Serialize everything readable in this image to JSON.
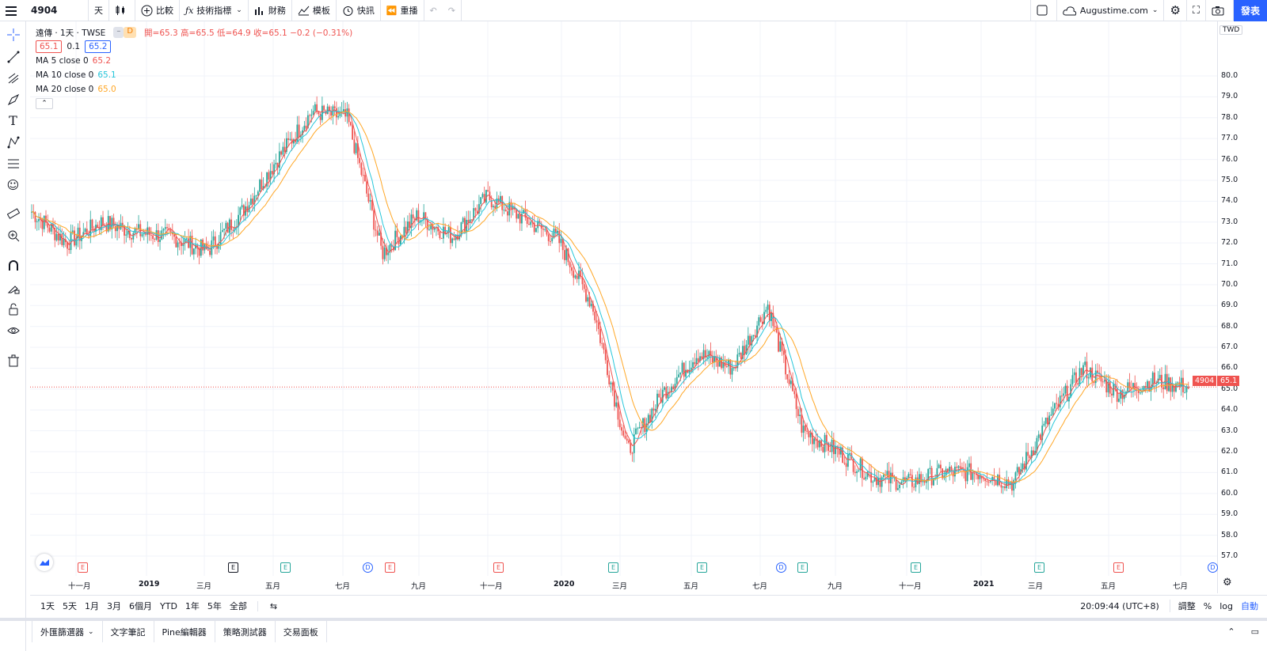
{
  "toolbar": {
    "symbol": "4904",
    "interval": "天",
    "compare": "比較",
    "indicators": "技術指標",
    "financials": "財務",
    "templates": "模板",
    "alert": "快訊",
    "replay": "重播",
    "account": "Augustime.com",
    "publish": "發表"
  },
  "legend": {
    "title": "遠傳 · 1天 · TWSE",
    "badge": "D",
    "ohlc": "開=65.3 高=65.5 低=64.9 收=65.1 −0.2 (−0.31%)",
    "bid": "65.1",
    "spread": "0.1",
    "ask": "65.2",
    "ma": [
      {
        "label": "MA 5 close 0",
        "value": "65.2",
        "color": "#ef5350"
      },
      {
        "label": "MA 10 close 0",
        "value": "65.1",
        "color": "#26c6da"
      },
      {
        "label": "MA 20 close 0",
        "value": "65.0",
        "color": "#ffa726"
      }
    ],
    "currency": "TWD"
  },
  "price_axis": [
    "80.0",
    "79.0",
    "78.0",
    "77.0",
    "76.0",
    "75.0",
    "74.0",
    "73.0",
    "72.0",
    "71.0",
    "70.0",
    "69.0",
    "68.0",
    "67.0",
    "66.0",
    "65.0",
    "64.0",
    "63.0",
    "62.0",
    "61.0",
    "60.0",
    "59.0",
    "58.0",
    "57.0"
  ],
  "last_price": {
    "symbol": "4904",
    "value": "65.1"
  },
  "time_axis": [
    {
      "label": "十一月"
    },
    {
      "label": "2019"
    },
    {
      "label": "三月"
    },
    {
      "label": "五月"
    },
    {
      "label": "七月"
    },
    {
      "label": "九月"
    },
    {
      "label": "十一月"
    },
    {
      "label": "2020"
    },
    {
      "label": "三月"
    },
    {
      "label": "五月"
    },
    {
      "label": "七月"
    },
    {
      "label": "九月"
    },
    {
      "label": "十一月"
    },
    {
      "label": "2021"
    },
    {
      "label": "三月"
    },
    {
      "label": "五月"
    },
    {
      "label": "七月"
    }
  ],
  "events": [
    {
      "type": "E",
      "label": "E"
    },
    {
      "type": "K",
      "label": "E"
    },
    {
      "type": "G",
      "label": "E"
    },
    {
      "type": "D",
      "label": "D"
    },
    {
      "type": "E",
      "label": "E"
    },
    {
      "type": "E",
      "label": "E"
    },
    {
      "type": "G",
      "label": "E"
    },
    {
      "type": "G",
      "label": "E"
    },
    {
      "type": "D",
      "label": "D"
    },
    {
      "type": "G",
      "label": "E"
    },
    {
      "type": "G",
      "label": "E"
    },
    {
      "type": "G",
      "label": "E"
    },
    {
      "type": "E",
      "label": "E"
    },
    {
      "type": "D",
      "label": "D"
    }
  ],
  "ranges": [
    "1天",
    "5天",
    "1月",
    "3月",
    "6個月",
    "YTD",
    "1年",
    "5年",
    "全部"
  ],
  "clock": "20:09:44 (UTC+8)",
  "scale_opts": [
    "調整",
    "%",
    "log",
    "自動"
  ],
  "panels": [
    "外匯篩選器",
    "文字筆記",
    "Pine編輯器",
    "策略測試器",
    "交易面板"
  ],
  "chart_data": {
    "type": "candlestick",
    "ylim": [
      57,
      80
    ],
    "x": [
      "2018-10",
      "2018-11",
      "2018-12",
      "2019-01",
      "2019-02",
      "2019-03",
      "2019-04",
      "2019-05",
      "2019-06",
      "2019-07",
      "2019-08",
      "2019-09",
      "2019-10",
      "2019-11",
      "2019-12",
      "2020-01",
      "2020-02",
      "2020-03",
      "2020-04",
      "2020-05",
      "2020-06",
      "2020-07",
      "2020-08",
      "2020-09",
      "2020-10",
      "2020-11",
      "2020-12",
      "2021-01",
      "2021-02",
      "2021-03",
      "2021-04",
      "2021-05",
      "2021-06",
      "2021-07"
    ],
    "close": [
      73.5,
      72.0,
      73.0,
      72.5,
      72.3,
      71.6,
      73.5,
      76.0,
      78.3,
      78.0,
      71.5,
      73.3,
      72.3,
      74.2,
      73.2,
      72.2,
      69.0,
      62.0,
      64.8,
      66.7,
      66.0,
      69.0,
      63.0,
      62.0,
      60.8,
      60.5,
      61.0,
      61.0,
      60.5,
      63.5,
      66.0,
      64.8,
      65.4,
      65.1
    ],
    "series": [
      {
        "name": "MA 5 close 0",
        "color": "#ef5350"
      },
      {
        "name": "MA 10 close 0",
        "color": "#26c6da"
      },
      {
        "name": "MA 20 close 0",
        "color": "#ffa726"
      }
    ]
  }
}
